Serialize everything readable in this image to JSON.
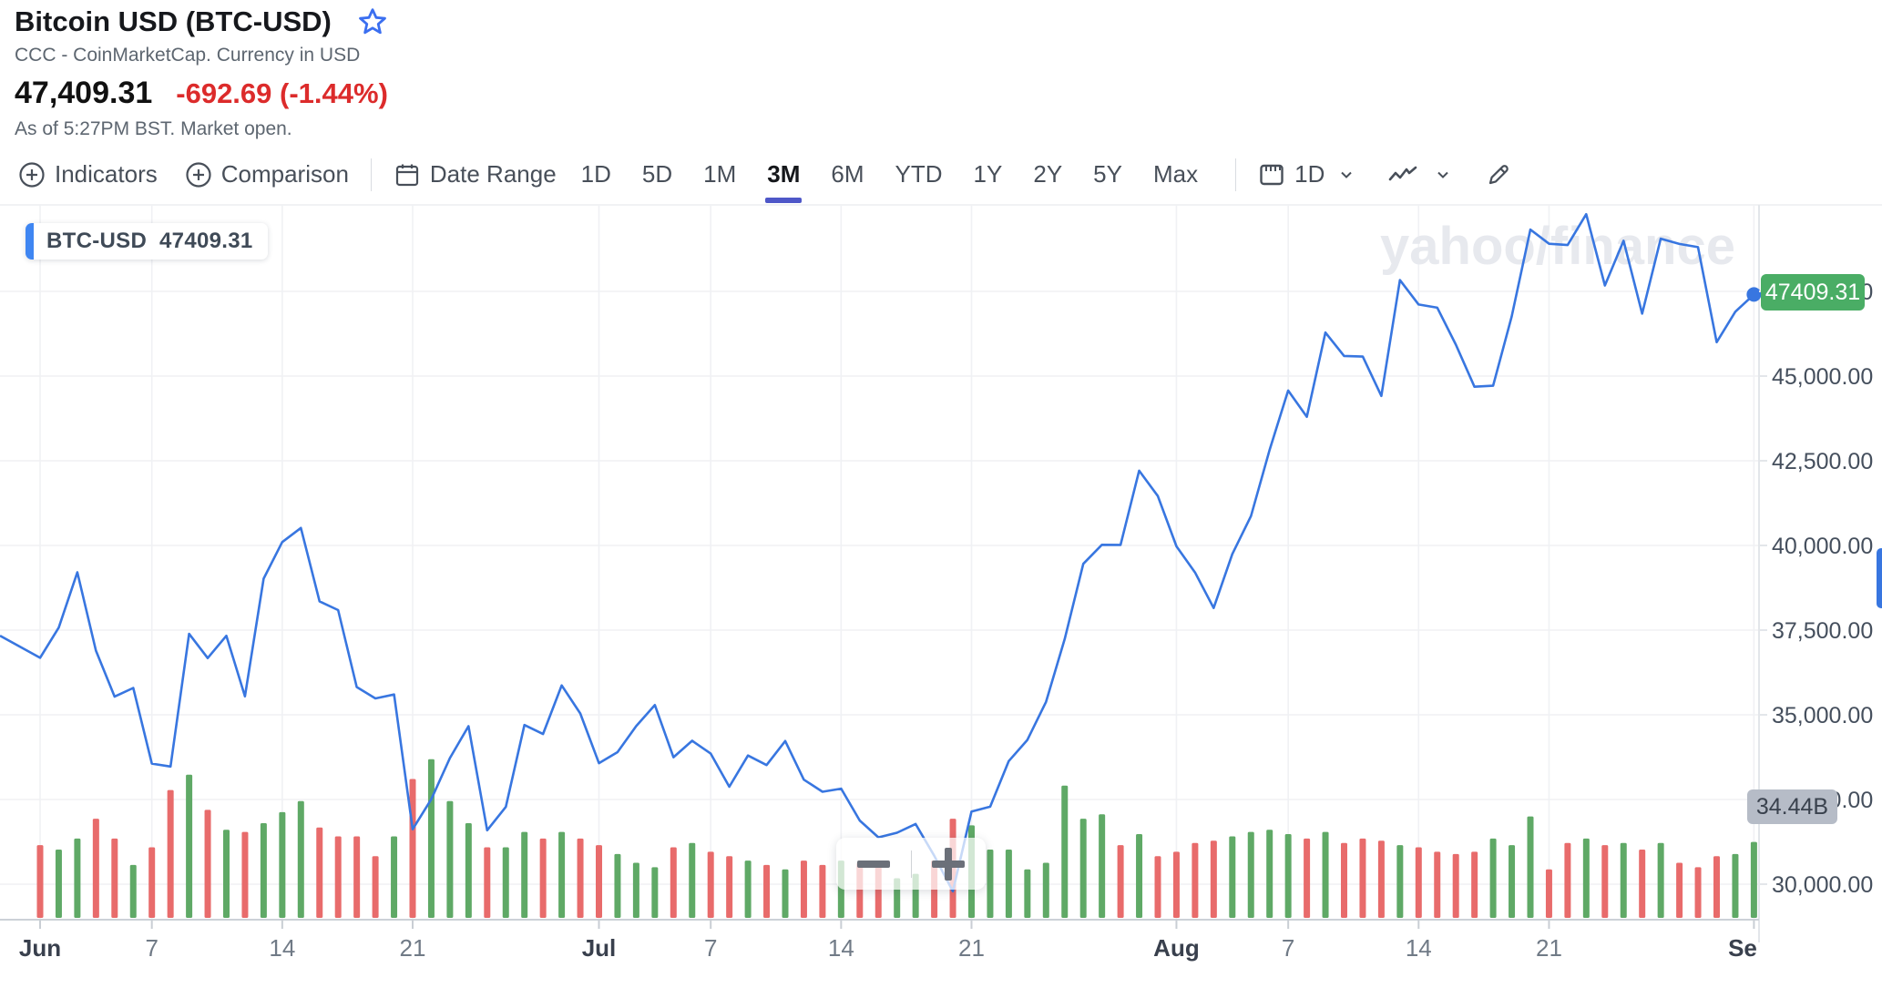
{
  "header": {
    "title": "Bitcoin USD (BTC-USD)",
    "subtitle": "CCC - CoinMarketCap. Currency in USD",
    "price": "47,409.31",
    "change": "-692.69 (-1.44%)",
    "asof": "As of 5:27PM BST. Market open."
  },
  "toolbar": {
    "indicators_label": "Indicators",
    "comparison_label": "Comparison",
    "date_range_label": "Date Range",
    "ranges": [
      "1D",
      "5D",
      "1M",
      "3M",
      "6M",
      "YTD",
      "1Y",
      "2Y",
      "5Y",
      "Max"
    ],
    "selected_range": "3M",
    "interval_label": "1D"
  },
  "chart": {
    "legend_symbol": "BTC-USD",
    "legend_value": "47409.31",
    "watermark": "yahoo/finance",
    "price_badge": "47409.31",
    "volume_badge": "34.44B",
    "zoom_out_label": "−",
    "zoom_in_label": "+"
  },
  "chart_data": {
    "type": "line",
    "title": "BTC-USD 3M daily close with volume bars",
    "legend": [
      "BTC-USD"
    ],
    "x_unit": "days since Jun 1",
    "prev_close": 37332,
    "close": [
      36684,
      37575,
      39208,
      36894,
      35538,
      35792,
      33560,
      33472,
      37389,
      36675,
      37332,
      35546,
      39020,
      40100,
      40516,
      38349,
      38092,
      35819,
      35484,
      35600,
      31622,
      32505,
      33723,
      34663,
      31592,
      32283,
      34700,
      34434,
      35867,
      35041,
      33572,
      33897,
      34668,
      35287,
      33746,
      34235,
      33855,
      32877,
      33798,
      33515,
      34227,
      33086,
      32729,
      32820,
      31880,
      31383,
      31520,
      31778,
      30839,
      29790,
      32144,
      32287,
      33634,
      34258,
      35381,
      37237,
      39457,
      40019,
      40016,
      42206,
      41461,
      39974,
      39201,
      38152,
      39747,
      40869,
      42818,
      44572,
      43798,
      46284,
      45593,
      45575,
      44415,
      47833,
      47112,
      47019,
      45927,
      44686,
      44714,
      46760,
      49325,
      48905,
      48869,
      49780,
      47674,
      48994,
      46843,
      49056,
      48900,
      48806,
      46000,
      46900,
      47409.31
    ],
    "volume_billions": [
      33,
      31,
      36,
      45,
      36,
      24,
      32,
      58,
      65,
      49,
      40,
      39,
      43,
      48,
      53,
      41,
      37,
      37,
      28,
      37,
      63,
      72,
      53,
      43,
      32,
      32,
      39,
      36,
      39,
      36,
      33,
      29,
      25,
      23,
      32,
      34,
      30,
      28,
      26,
      24,
      22,
      26,
      24,
      26,
      25,
      26,
      18,
      20,
      26,
      45,
      42,
      31,
      31,
      22,
      25,
      60,
      45,
      47,
      33,
      38,
      28,
      30,
      34,
      35,
      37,
      39,
      40,
      38,
      36,
      39,
      34,
      36,
      35,
      33,
      32,
      30,
      29,
      30,
      36,
      33,
      46,
      22,
      34,
      36,
      33,
      34,
      31,
      34,
      25,
      23,
      28,
      29,
      34.44
    ],
    "current_value": 47409.31,
    "current_volume_label": "34.44B",
    "ylim": [
      29500,
      51600
    ],
    "y_ticks": [
      {
        "v": 47500,
        "label": "47,500.00"
      },
      {
        "v": 45000,
        "label": "45,000.00"
      },
      {
        "v": 42500,
        "label": "42,500.00"
      },
      {
        "v": 40000,
        "label": "40,000.00"
      },
      {
        "v": 37500,
        "label": "37,500.00"
      },
      {
        "v": 35000,
        "label": "35,000.00"
      },
      {
        "v": 32500,
        "label": "32,500.00"
      },
      {
        "v": 30000,
        "label": "30,000.00"
      }
    ],
    "x_ticks": [
      {
        "label": "Jun",
        "day": 0,
        "month": true
      },
      {
        "label": "7",
        "day": 6,
        "month": false
      },
      {
        "label": "14",
        "day": 13,
        "month": false
      },
      {
        "label": "21",
        "day": 20,
        "month": false
      },
      {
        "label": "Jul",
        "day": 30,
        "month": true
      },
      {
        "label": "7",
        "day": 36,
        "month": false
      },
      {
        "label": "14",
        "day": 43,
        "month": false
      },
      {
        "label": "21",
        "day": 50,
        "month": false
      },
      {
        "label": "Aug",
        "day": 61,
        "month": true
      },
      {
        "label": "7",
        "day": 67,
        "month": false
      },
      {
        "label": "14",
        "day": 74,
        "month": false
      },
      {
        "label": "21",
        "day": 81,
        "month": false
      },
      {
        "label": "Se",
        "day": 92,
        "month": true
      }
    ],
    "grid": true,
    "legend_position": "top-left",
    "colors": {
      "line": "#3876e0",
      "up": "#5fa966",
      "down": "#e86b6b",
      "grid": "#f0f1f4",
      "axis": "#ccd1d7",
      "frame": "#e3e6ea",
      "watermark": "#e7e9ee",
      "tick_month": "#39404d",
      "tick_day": "#707a86",
      "y_label": "#454f5d"
    }
  }
}
